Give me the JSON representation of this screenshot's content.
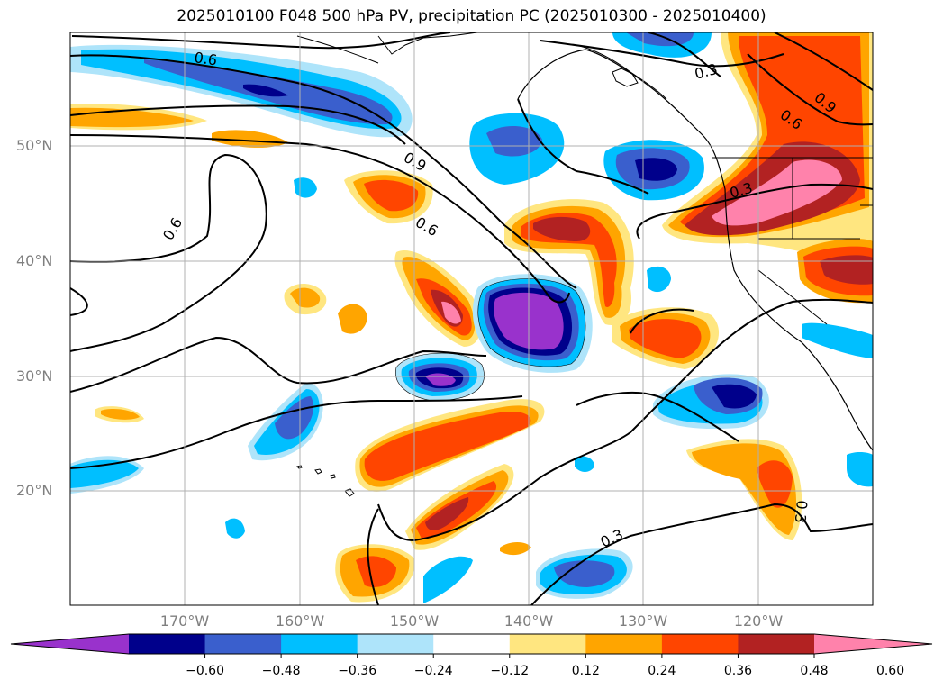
{
  "title": "2025010100 F048 500 hPa PV, precipitation PC (2025010300 - 2025010400)",
  "lat_labels": [
    "50°N",
    "40°N",
    "30°N",
    "20°N"
  ],
  "lon_labels": [
    "170°W",
    "160°W",
    "150°W",
    "140°W",
    "130°W",
    "120°W"
  ],
  "contour_labels": [
    "0.6",
    "0.9",
    "0.6",
    "0.6",
    "0.3",
    "0.6",
    "0.9",
    "0.3",
    "0.3",
    "0.3"
  ],
  "colorbar": {
    "ticks": [
      "−0.60",
      "−0.48",
      "−0.36",
      "−0.24",
      "−0.12",
      "0.12",
      "0.24",
      "0.36",
      "0.48",
      "0.60"
    ],
    "colors": [
      "#9932cc",
      "#00008b",
      "#3a5fcd",
      "#00bfff",
      "#aee4fa",
      "#ffffff",
      "#ffe680",
      "#ffa500",
      "#ff4500",
      "#b22222",
      "#ff82ab"
    ]
  }
}
